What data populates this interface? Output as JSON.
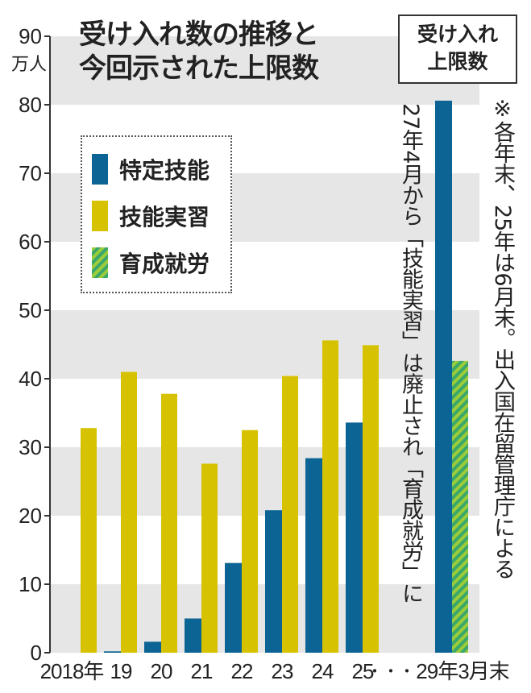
{
  "title": [
    "受け入れ数の推移と",
    "今回示された上限数"
  ],
  "cap_label": [
    "受け入れ",
    "上限数"
  ],
  "unit": "万人",
  "note_abolish": "27年4月から「技能実習」は廃止され「育成就労」に",
  "note_source": "※各年末、25年は6月末。出入国在留管理庁による",
  "colors": {
    "tokutei": "#0b6493",
    "jisshu": "#d6c200",
    "ikusei_a": "#9ccc3a",
    "ikusei_b": "#3aa86a",
    "band": "#e6e6e6"
  },
  "chart_data": {
    "type": "bar",
    "ylim": [
      0,
      90
    ],
    "yticks": [
      "0",
      "10",
      "20",
      "30",
      "40",
      "50",
      "60",
      "70",
      "80",
      "90"
    ],
    "categories": [
      "2018年",
      "19",
      "20",
      "21",
      "22",
      "23",
      "24",
      "25",
      "29年3月末"
    ],
    "x_break_label": "・・・",
    "legend_placement": "top-left",
    "series": [
      {
        "name": "特定技能",
        "values": [
          null,
          0.2,
          1.6,
          5.0,
          13.1,
          20.8,
          28.4,
          33.6,
          80.6
        ]
      },
      {
        "name": "技能実習",
        "values": [
          32.8,
          41.0,
          37.8,
          27.6,
          32.5,
          40.4,
          45.6,
          44.9,
          null
        ]
      },
      {
        "name": "育成就労",
        "values": [
          null,
          null,
          null,
          null,
          null,
          null,
          null,
          null,
          42.6
        ]
      }
    ]
  }
}
